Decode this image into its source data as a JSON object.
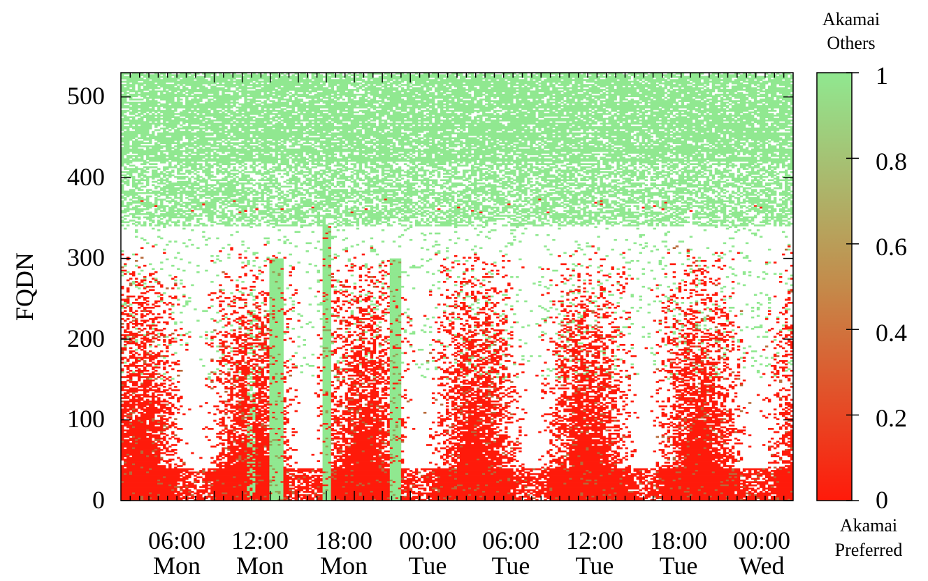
{
  "chart_data": {
    "type": "heatmap",
    "title": "",
    "xlabel": "",
    "ylabel": "FQDN",
    "ylim": [
      0,
      530
    ],
    "xlim_hours": [
      -20,
      124
    ],
    "x_ticks": [
      {
        "hour": 0,
        "time": "06:00",
        "day": "Mon"
      },
      {
        "hour": 6,
        "time": "12:00",
        "day": "Mon"
      },
      {
        "hour": 12,
        "time": "18:00",
        "day": "Mon"
      },
      {
        "hour": 18,
        "time": "00:00",
        "day": "Tue"
      },
      {
        "hour": 24,
        "time": "06:00",
        "day": "Tue"
      },
      {
        "hour": 30,
        "time": "12:00",
        "day": "Tue"
      },
      {
        "hour": 36,
        "time": "18:00",
        "day": "Tue"
      },
      {
        "hour": 42,
        "time": "00:00",
        "day": "Wed"
      }
    ],
    "y_ticks": [
      0,
      100,
      200,
      300,
      400,
      500
    ],
    "colorbar": {
      "min": 0,
      "max": 1,
      "ticks": [
        0,
        0.2,
        0.4,
        0.6,
        0.8,
        1
      ],
      "low_color": "#ff1a0a",
      "high_color": "#90e890",
      "label_top": [
        "Akamai",
        "Others"
      ],
      "label_bottom": [
        "Akamai",
        "Preferred"
      ]
    },
    "regions": {
      "always_others_above_fqdn": 340,
      "full_others_intervals": [
        {
          "start": 11.9,
          "end": 14.8,
          "fqdn_top": 300
        },
        {
          "start": 23.3,
          "end": 25.0,
          "fqdn_top": 560
        },
        {
          "start": 37.9,
          "end": 39.8,
          "fqdn_top": 300
        }
      ],
      "partial_others_intervals": [
        {
          "start": 6.8,
          "end": 8.9,
          "fqdn_top": 300
        }
      ]
    }
  }
}
